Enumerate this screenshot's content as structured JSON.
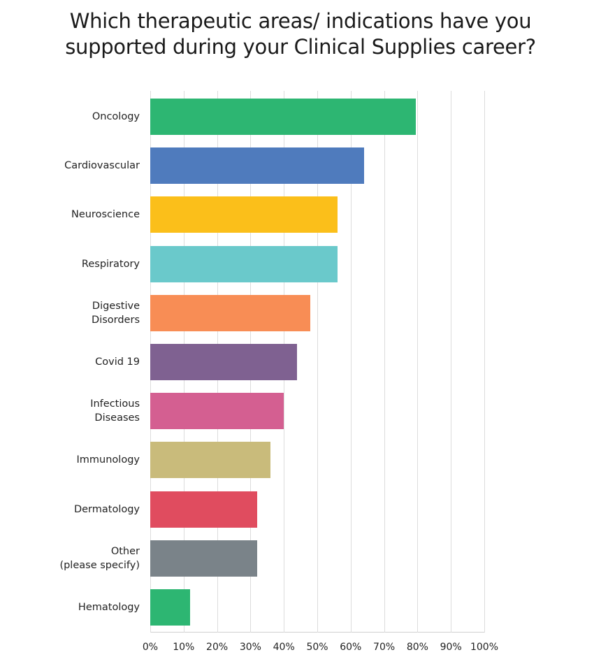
{
  "title_lines": [
    "Which therapeutic areas/ indications have you",
    "supported during your Clinical Supplies career?"
  ],
  "chart_data": {
    "type": "bar",
    "orientation": "horizontal",
    "title": "Which therapeutic areas/ indications have you supported during your Clinical Supplies career?",
    "categories": [
      "Oncology",
      "Cardiovascular",
      "Neuroscience",
      "Respiratory",
      "Digestive Disorders",
      "Covid 19",
      "Infectious Diseases",
      "Immunology",
      "Dermatology",
      "Other (please specify)",
      "Hematology"
    ],
    "values": [
      79.5,
      64,
      56,
      56,
      48,
      44,
      40,
      36,
      32,
      32,
      12
    ],
    "colors": [
      "#2db672",
      "#4f7bbd",
      "#fbbf1a",
      "#6ac9cb",
      "#f88d55",
      "#7f6191",
      "#d45f91",
      "#c9bb7b",
      "#e04c5f",
      "#7a8389",
      "#2db672"
    ],
    "xlabel": "",
    "ylabel": "",
    "xlim": [
      0,
      100
    ],
    "x_ticks": [
      "0%",
      "10%",
      "20%",
      "30%",
      "40%",
      "50%",
      "60%",
      "70%",
      "80%",
      "90%",
      "100%"
    ],
    "grid": true,
    "legend": "none"
  },
  "label_lines": [
    [
      "Oncology"
    ],
    [
      "Cardiovascular"
    ],
    [
      "Neuroscience"
    ],
    [
      "Respiratory"
    ],
    [
      "Digestive",
      "Disorders"
    ],
    [
      "Covid 19"
    ],
    [
      "Infectious",
      "Diseases"
    ],
    [
      "Immunology"
    ],
    [
      "Dermatology"
    ],
    [
      "Other",
      "(please specify)"
    ],
    [
      "Hematology"
    ]
  ]
}
